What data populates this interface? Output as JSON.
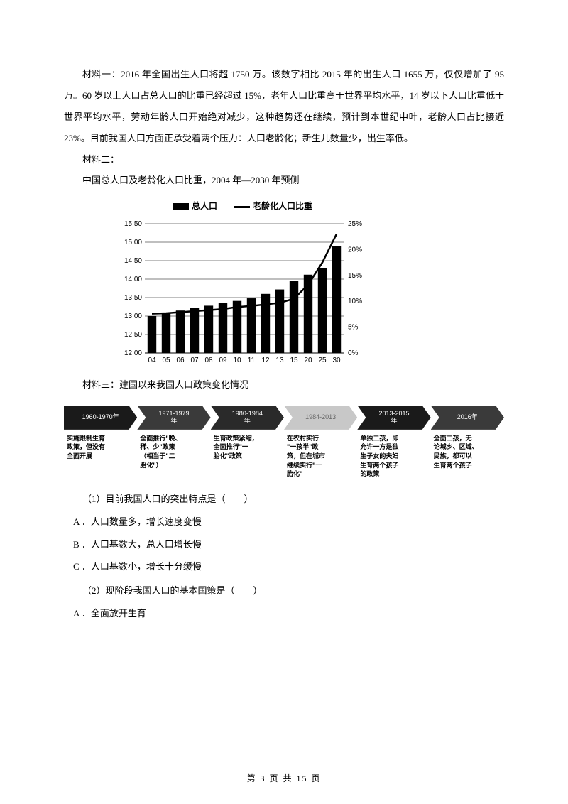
{
  "material1": {
    "text": "材料一：2016 年全国出生人口将超 1750 万。该数字相比 2015 年的出生人口 1655 万，仅仅增加了 95 万。60 岁以上人口占总人口的比重已经超过 15%，老年人口比重高于世界平均水平，14 岁以下人口比重低于世界平均水平，劳动年龄人口开始绝对减少，这种趋势还在继续，预计到本世纪中叶，老龄人口占比接近 23%。目前我国人口方面正承受着两个压力：人口老龄化；新生儿数量少，出生率低。"
  },
  "material2": {
    "heading": "材料二：",
    "subtitle": "中国总人口及老龄化人口比重，2004 年—2030 年预侧"
  },
  "chart": {
    "type": "bar-line-combo",
    "legend": {
      "bar": "总人口",
      "line": "老龄化人口比重"
    },
    "categories": [
      "04",
      "05",
      "06",
      "07",
      "08",
      "09",
      "10",
      "11",
      "12",
      "13",
      "15",
      "20",
      "25",
      "30"
    ],
    "bars": [
      13.0,
      13.08,
      13.15,
      13.22,
      13.28,
      13.35,
      13.41,
      13.48,
      13.6,
      13.72,
      13.95,
      14.12,
      14.3,
      14.9
    ],
    "line_pct": [
      7.6,
      7.7,
      7.9,
      8.1,
      8.3,
      8.5,
      8.9,
      9.1,
      9.4,
      9.7,
      10.5,
      13.2,
      17.5,
      23.0
    ],
    "y_left": {
      "min": 12.0,
      "max": 15.5,
      "ticks": [
        12.0,
        12.5,
        13.0,
        13.5,
        14.0,
        14.5,
        15.0,
        15.5
      ]
    },
    "y_right": {
      "min": 0,
      "max": 25,
      "ticks": [
        0,
        5,
        10,
        15,
        20,
        25
      ]
    },
    "colors": {
      "bar": "#000000",
      "line": "#000000",
      "grid": "#000000",
      "bg": "#ffffff"
    },
    "fontsize_axis": 10
  },
  "material3": {
    "heading": "材料三：建国以来我国人口政策变化情况"
  },
  "timeline": {
    "items": [
      {
        "period": "1960-1970年",
        "bg": "#1a1a1a",
        "desc": "实施限制生育\n政策，但没有\n全面开展"
      },
      {
        "period": "1971-1979\n年",
        "bg": "#3a3a3a",
        "desc": "全面推行\"晚、\n稀、少\"政策\n（相当于\"二\n胎化\"）"
      },
      {
        "period": "1980-1984\n年",
        "bg": "#2a2a2a",
        "desc": "生育政策紧缩，\n全面推行\"一\n胎化\"政策"
      },
      {
        "period": "1984-2013",
        "bg": "#c8c8c8",
        "desc": "在农村实行\n\"一孩半\"政\n策，但在城市\n继续实行\"一\n胎化\""
      },
      {
        "period": "2013-2015\n年",
        "bg": "#1a1a1a",
        "desc": "单独二孩，即\n允许一方是独\n生子女的夫妇\n生育两个孩子\n的政策"
      },
      {
        "period": "2016年",
        "bg": "#3a3a3a",
        "desc": "全面二孩，无\n论城乡、区域、\n民族，都可以\n生育两个孩子"
      }
    ]
  },
  "questions": {
    "q1": {
      "stem": "（1）目前我国人口的突出特点是（　　）",
      "opts": [
        "A ．人口数量多，增长速度变慢",
        "B ．人口基数大，总人口增长慢",
        "C ．人口基数小，增长十分缓慢"
      ]
    },
    "q2": {
      "stem": "（2）现阶段我国人口的基本国策是（　　）",
      "opts": [
        "A ．全面放开生育"
      ]
    }
  },
  "footer": "第 3 页 共 15 页"
}
